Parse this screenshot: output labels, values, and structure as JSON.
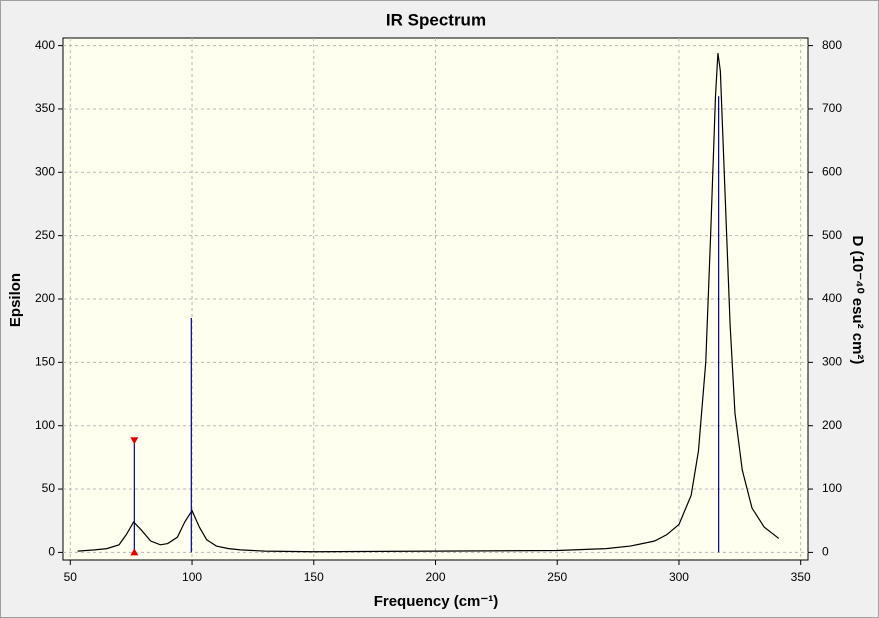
{
  "chart_data": {
    "type": "line",
    "title": "IR Spectrum",
    "x_label": "Frequency (cm⁻¹)",
    "y_label": "Epsilon",
    "y2_label": "D (10⁻⁴⁰ esu² cm²)",
    "xlim": [
      47,
      353
    ],
    "xticks": [
      50,
      100,
      150,
      200,
      250,
      300,
      350
    ],
    "ylim": [
      -6,
      406
    ],
    "yticks": [
      0,
      50,
      100,
      150,
      200,
      250,
      300,
      350,
      400
    ],
    "y2lim": [
      -12,
      812
    ],
    "y2ticks": [
      0,
      100,
      200,
      300,
      400,
      500,
      600,
      700,
      800
    ],
    "grid": true,
    "series": [
      {
        "type": "line",
        "color": "#000000",
        "x": [
          53,
          60,
          65,
          70,
          73,
          76,
          79,
          83,
          87,
          90,
          94,
          97,
          100,
          103,
          106,
          110,
          115,
          120,
          130,
          150,
          200,
          250,
          270,
          280,
          290,
          295,
          300,
          305,
          308,
          311,
          313,
          315,
          316,
          317,
          319,
          321,
          323,
          326,
          330,
          335,
          341
        ],
        "values": [
          1,
          2,
          3,
          6,
          14,
          24,
          18,
          9,
          6,
          7,
          12,
          24,
          33,
          20,
          10,
          5,
          3,
          2,
          1,
          0.5,
          1,
          1.5,
          3,
          5,
          9,
          14,
          22,
          45,
          80,
          150,
          250,
          360,
          394,
          380,
          280,
          180,
          110,
          65,
          35,
          20,
          11
        ]
      },
      {
        "type": "stick",
        "axis": "y2",
        "color": "#00008b",
        "x": [
          76.3,
          99.7,
          316.3
        ],
        "values": [
          177,
          370,
          720
        ]
      }
    ]
  }
}
